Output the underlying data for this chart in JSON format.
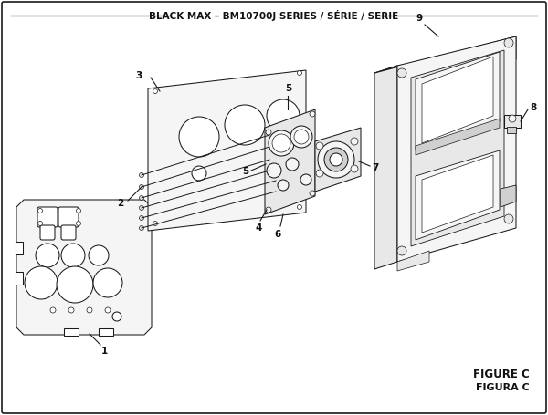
{
  "title": "BLACK MAX – BM10700J SERIES / SÉRIE / SERIE",
  "figure_label": "FIGURE C",
  "figura_label": "FIGURA C",
  "bg_color": "#ffffff",
  "line_color": "#1a1a1a",
  "text_color": "#111111",
  "fill_light": "#f5f5f5",
  "fill_mid": "#e8e8e8",
  "fill_dark": "#d0d0d0",
  "title_fontsize": 7.5,
  "label_fontsize": 7.5,
  "figure_label_fontsize": 8.5
}
